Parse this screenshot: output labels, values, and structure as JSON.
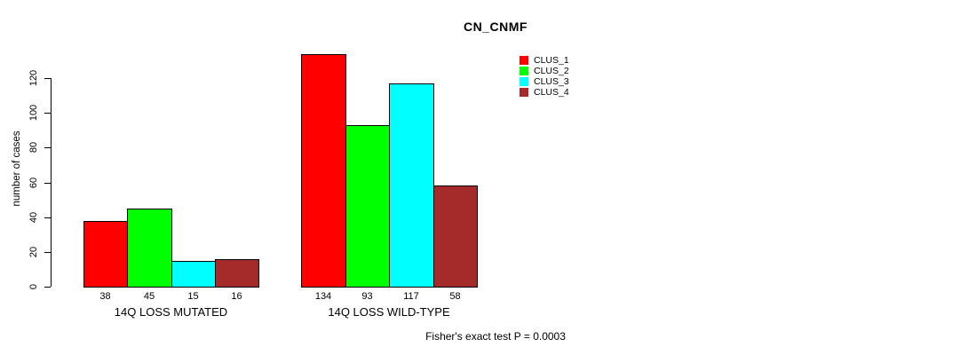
{
  "chart_data": {
    "type": "bar",
    "title": "CN_CNMF",
    "ylabel": "number of cases",
    "xlabel": "",
    "categories": [
      "14Q LOSS MUTATED",
      "14Q LOSS WILD-TYPE"
    ],
    "series": [
      {
        "name": "CLUS_1",
        "color": "#ff0000",
        "values": [
          38,
          134
        ]
      },
      {
        "name": "CLUS_2",
        "color": "#00ff00",
        "values": [
          45,
          93
        ]
      },
      {
        "name": "CLUS_3",
        "color": "#00ffff",
        "values": [
          15,
          117
        ]
      },
      {
        "name": "CLUS_4",
        "color": "#a52a2a",
        "values": [
          16,
          58
        ]
      }
    ],
    "yticks": [
      0,
      20,
      40,
      60,
      80,
      100,
      120
    ],
    "ylim": [
      0,
      135
    ],
    "grid": false,
    "bar_value_labels_shown": true,
    "legend_position": "top-right",
    "annotation": "Fisher's exact test P = 0.0003"
  }
}
